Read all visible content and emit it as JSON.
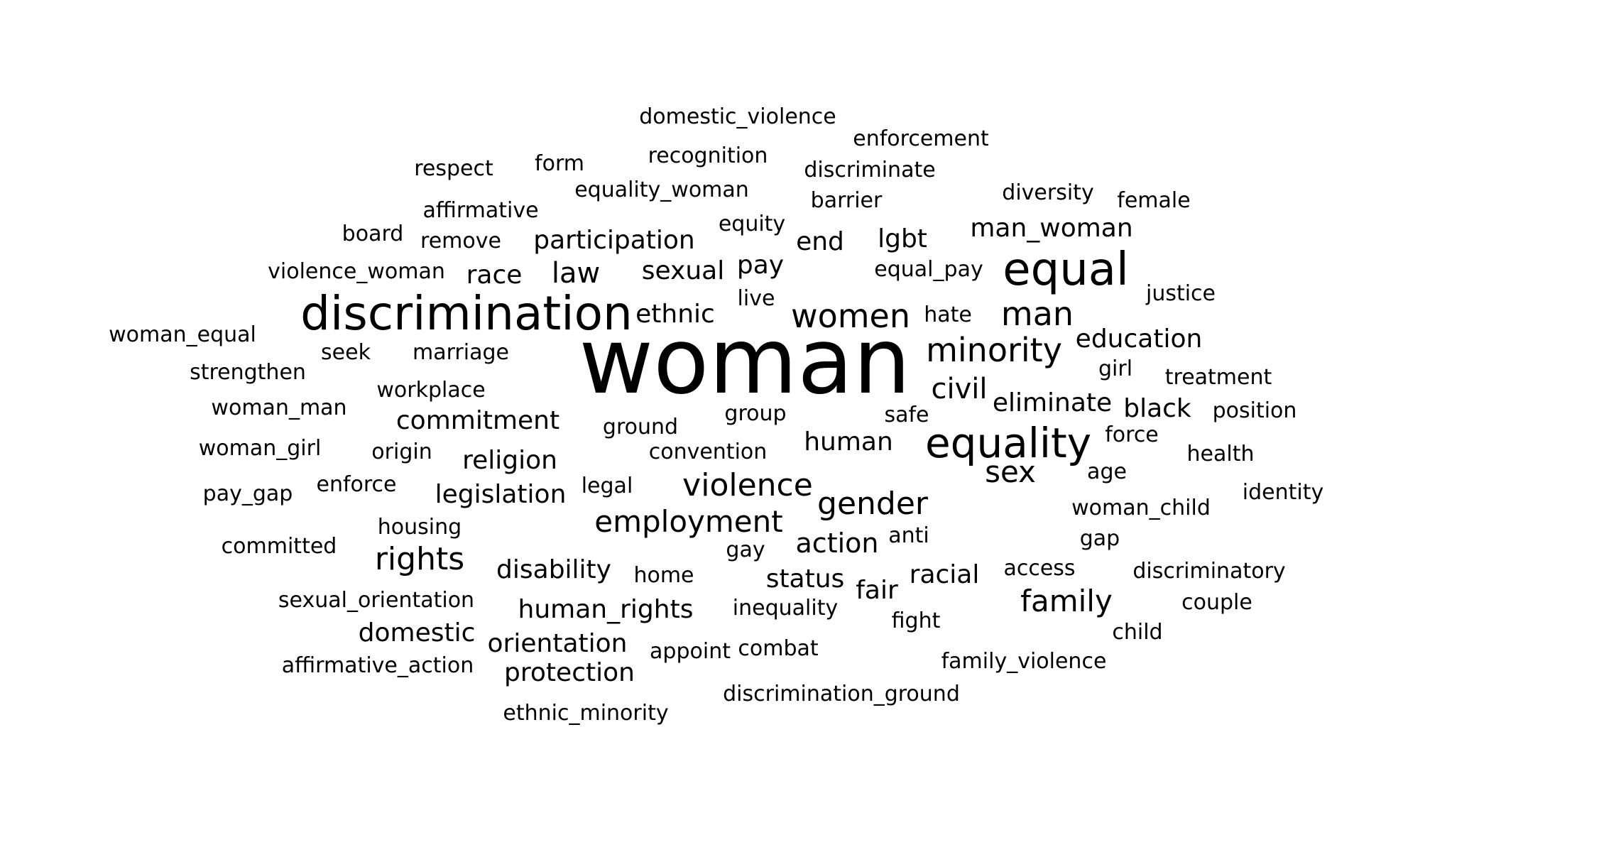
{
  "words": [
    {
      "text": "domestic_violence",
      "size": 3
    },
    {
      "text": "enforcement",
      "size": 3
    },
    {
      "text": "recognition",
      "size": 3
    },
    {
      "text": "discriminate",
      "size": 3
    },
    {
      "text": "respect",
      "size": 3
    },
    {
      "text": "form",
      "size": 3
    },
    {
      "text": "diversity",
      "size": 3
    },
    {
      "text": "female",
      "size": 3
    },
    {
      "text": "equality_woman",
      "size": 3
    },
    {
      "text": "barrier",
      "size": 3
    },
    {
      "text": "affirmative",
      "size": 3
    },
    {
      "text": "equity",
      "size": 3
    },
    {
      "text": "board",
      "size": 3
    },
    {
      "text": "man_woman",
      "size": 4
    },
    {
      "text": "remove",
      "size": 3
    },
    {
      "text": "participation",
      "size": 4
    },
    {
      "text": "end",
      "size": 4
    },
    {
      "text": "lgbt",
      "size": 4
    },
    {
      "text": "equal",
      "size": 7
    },
    {
      "text": "pay",
      "size": 4
    },
    {
      "text": "violence_woman",
      "size": 3
    },
    {
      "text": "law",
      "size": 5
    },
    {
      "text": "race",
      "size": 4
    },
    {
      "text": "sexual",
      "size": 4
    },
    {
      "text": "equal_pay",
      "size": 3
    },
    {
      "text": "justice",
      "size": 3
    },
    {
      "text": "live",
      "size": 3
    },
    {
      "text": "discrimination",
      "size": 8
    },
    {
      "text": "ethnic",
      "size": 4
    },
    {
      "text": "women",
      "size": 5
    },
    {
      "text": "hate",
      "size": 3
    },
    {
      "text": "man",
      "size": 5
    },
    {
      "text": "woman_equal",
      "size": 3
    },
    {
      "text": "education",
      "size": 4
    },
    {
      "text": "woman",
      "size": 10
    },
    {
      "text": "seek",
      "size": 3
    },
    {
      "text": "marriage",
      "size": 3
    },
    {
      "text": "minority",
      "size": 5
    },
    {
      "text": "strengthen",
      "size": 3
    },
    {
      "text": "girl",
      "size": 3
    },
    {
      "text": "treatment",
      "size": 3
    },
    {
      "text": "civil",
      "size": 5
    },
    {
      "text": "workplace",
      "size": 3
    },
    {
      "text": "eliminate",
      "size": 4
    },
    {
      "text": "woman_man",
      "size": 3
    },
    {
      "text": "black",
      "size": 4
    },
    {
      "text": "position",
      "size": 3
    },
    {
      "text": "commitment",
      "size": 4
    },
    {
      "text": "group",
      "size": 3
    },
    {
      "text": "safe",
      "size": 3
    },
    {
      "text": "ground",
      "size": 3
    },
    {
      "text": "force",
      "size": 3
    },
    {
      "text": "equality",
      "size": 7
    },
    {
      "text": "human",
      "size": 4
    },
    {
      "text": "woman_girl",
      "size": 3
    },
    {
      "text": "origin",
      "size": 3
    },
    {
      "text": "convention",
      "size": 3
    },
    {
      "text": "religion",
      "size": 4
    },
    {
      "text": "health",
      "size": 3
    },
    {
      "text": "sex",
      "size": 5
    },
    {
      "text": "age",
      "size": 3
    },
    {
      "text": "enforce",
      "size": 3
    },
    {
      "text": "violence",
      "size": 5
    },
    {
      "text": "legal",
      "size": 3
    },
    {
      "text": "pay_gap",
      "size": 3
    },
    {
      "text": "legislation",
      "size": 4
    },
    {
      "text": "identity",
      "size": 3
    },
    {
      "text": "gender",
      "size": 5
    },
    {
      "text": "woman_child",
      "size": 3
    },
    {
      "text": "housing",
      "size": 3
    },
    {
      "text": "employment",
      "size": 5
    },
    {
      "text": "anti",
      "size": 3
    },
    {
      "text": "gap",
      "size": 3
    },
    {
      "text": "committed",
      "size": 3
    },
    {
      "text": "action",
      "size": 4
    },
    {
      "text": "gay",
      "size": 3
    },
    {
      "text": "rights",
      "size": 5
    },
    {
      "text": "disability",
      "size": 4
    },
    {
      "text": "access",
      "size": 3
    },
    {
      "text": "discriminatory",
      "size": 3
    },
    {
      "text": "home",
      "size": 3
    },
    {
      "text": "racial",
      "size": 4
    },
    {
      "text": "status",
      "size": 4
    },
    {
      "text": "fair",
      "size": 4
    },
    {
      "text": "sexual_orientation",
      "size": 3
    },
    {
      "text": "family",
      "size": 5
    },
    {
      "text": "couple",
      "size": 3
    },
    {
      "text": "human_rights",
      "size": 4
    },
    {
      "text": "inequality",
      "size": 3
    },
    {
      "text": "fight",
      "size": 3
    },
    {
      "text": "domestic",
      "size": 4
    },
    {
      "text": "child",
      "size": 3
    },
    {
      "text": "orientation",
      "size": 4
    },
    {
      "text": "appoint",
      "size": 3
    },
    {
      "text": "combat",
      "size": 3
    },
    {
      "text": "affirmative_action",
      "size": 3
    },
    {
      "text": "protection",
      "size": 4
    },
    {
      "text": "family_violence",
      "size": 3
    },
    {
      "text": "discrimination_ground",
      "size": 3
    },
    {
      "text": "ethnic_minority",
      "size": 3
    }
  ]
}
